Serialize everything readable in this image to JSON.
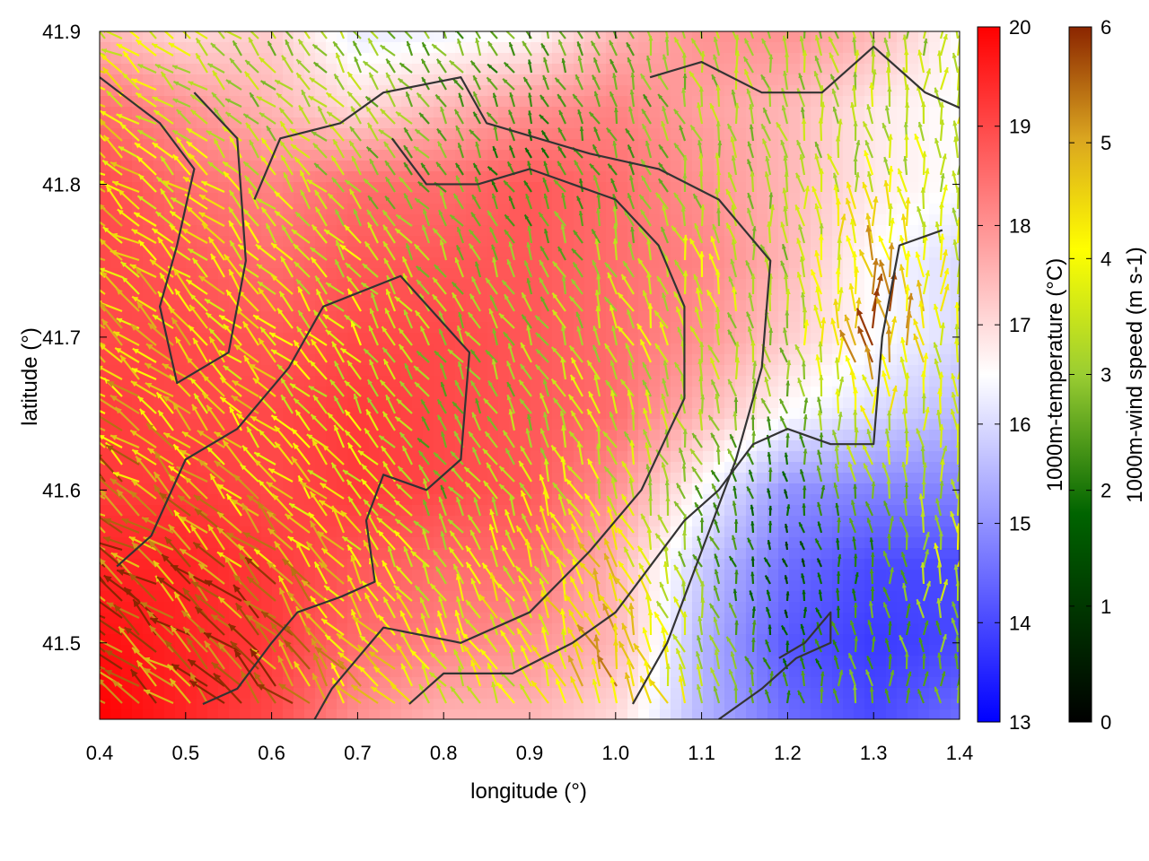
{
  "chart_data": {
    "type": "heatmap",
    "title": "",
    "xlabel": "longitude (°)",
    "ylabel": "latitude (°)",
    "xlim": [
      0.4,
      1.4
    ],
    "ylim": [
      41.45,
      41.9
    ],
    "x_ticks": [
      "0.4",
      "0.5",
      "0.6",
      "0.7",
      "0.8",
      "0.9",
      "1.0",
      "1.1",
      "1.2",
      "1.3",
      "1.4"
    ],
    "y_ticks": [
      "41.5",
      "41.6",
      "41.7",
      "41.8",
      "41.9"
    ],
    "grid": false,
    "temperature_field": {
      "colorbar_label": "1000m-temperature (°C)",
      "range": [
        13,
        20
      ],
      "ticks": [
        "13",
        "14",
        "15",
        "16",
        "17",
        "18",
        "19",
        "20"
      ],
      "palette": [
        "#0000ff",
        "#ffffff",
        "#ff0000"
      ],
      "x": [
        0.4,
        0.5,
        0.6,
        0.7,
        0.8,
        0.9,
        1.0,
        1.1,
        1.2,
        1.3,
        1.4
      ],
      "y": [
        41.9,
        41.85,
        41.8,
        41.75,
        41.7,
        41.65,
        41.6,
        41.55,
        41.5,
        41.45
      ],
      "values": [
        [
          17.5,
          17.0,
          17.2,
          16.2,
          16.3,
          16.5,
          17.5,
          18.0,
          18.0,
          17.5,
          16.5
        ],
        [
          18.5,
          18.0,
          17.5,
          17.0,
          17.5,
          18.0,
          18.2,
          17.8,
          17.5,
          16.8,
          16.5
        ],
        [
          19.0,
          18.5,
          18.2,
          18.5,
          18.5,
          18.8,
          18.5,
          18.0,
          17.5,
          16.8,
          16.5
        ],
        [
          19.0,
          18.8,
          18.5,
          18.8,
          18.8,
          18.8,
          18.5,
          18.2,
          17.5,
          16.5,
          16.0
        ],
        [
          19.0,
          19.0,
          18.8,
          19.0,
          19.0,
          18.8,
          18.5,
          18.0,
          17.2,
          16.5,
          16.0
        ],
        [
          19.2,
          19.0,
          19.0,
          19.2,
          19.0,
          18.8,
          18.5,
          17.5,
          16.5,
          16.0,
          15.5
        ],
        [
          19.2,
          19.2,
          19.0,
          19.2,
          19.0,
          18.8,
          18.0,
          16.5,
          15.0,
          14.8,
          14.8
        ],
        [
          19.5,
          19.5,
          19.2,
          18.8,
          18.5,
          18.5,
          17.5,
          15.8,
          14.5,
          14.0,
          14.0
        ],
        [
          19.8,
          19.5,
          19.2,
          18.5,
          18.2,
          18.0,
          17.5,
          15.5,
          14.2,
          13.8,
          14.0
        ],
        [
          20.0,
          19.5,
          19.0,
          18.0,
          17.5,
          17.5,
          17.0,
          15.5,
          14.5,
          14.0,
          14.5
        ]
      ]
    },
    "wind_field": {
      "colorbar_label": "1000m-wind speed (m s-1)",
      "range": [
        0,
        6
      ],
      "ticks": [
        "0",
        "1",
        "2",
        "3",
        "4",
        "5",
        "6"
      ],
      "palette": [
        "#000000",
        "#006400",
        "#9acd32",
        "#ffff00",
        "#daa520",
        "#8b2500"
      ],
      "x": [
        0.4,
        0.5,
        0.6,
        0.7,
        0.8,
        0.9,
        1.0,
        1.1,
        1.2,
        1.3,
        1.4
      ],
      "y": [
        41.9,
        41.85,
        41.8,
        41.75,
        41.7,
        41.65,
        41.6,
        41.55,
        41.5,
        41.45
      ],
      "speed": [
        [
          3.5,
          3.0,
          2.5,
          2.5,
          2.0,
          2.0,
          2.0,
          2.5,
          2.5,
          2.5,
          2.5
        ],
        [
          3.8,
          3.0,
          2.5,
          2.5,
          2.0,
          1.5,
          1.8,
          2.5,
          2.5,
          2.8,
          3.0
        ],
        [
          4.0,
          3.5,
          3.0,
          2.5,
          2.0,
          1.5,
          2.0,
          2.5,
          2.5,
          3.0,
          3.0
        ],
        [
          4.0,
          3.8,
          3.5,
          3.0,
          2.5,
          2.0,
          2.5,
          3.0,
          2.5,
          4.5,
          3.0
        ],
        [
          4.2,
          4.0,
          3.5,
          3.0,
          2.5,
          2.5,
          3.0,
          3.0,
          2.5,
          5.5,
          3.0
        ],
        [
          4.5,
          4.0,
          3.8,
          3.0,
          2.0,
          2.5,
          3.0,
          2.5,
          2.0,
          3.5,
          3.0
        ],
        [
          5.0,
          4.5,
          4.0,
          3.5,
          2.0,
          3.0,
          3.0,
          2.0,
          1.2,
          2.5,
          2.5
        ],
        [
          5.5,
          5.0,
          4.8,
          3.8,
          3.0,
          3.5,
          4.0,
          2.0,
          0.8,
          1.5,
          3.5
        ],
        [
          5.5,
          5.5,
          5.5,
          4.0,
          3.5,
          3.5,
          4.5,
          2.5,
          1.0,
          2.0,
          2.0
        ],
        [
          5.5,
          5.5,
          5.8,
          4.5,
          3.0,
          3.0,
          4.5,
          3.0,
          2.0,
          2.0,
          2.0
        ]
      ],
      "direction": "mostly towards north-west in the west, towards north in the east"
    },
    "contour_color": "#333333",
    "contours": [
      [
        [
          0.4,
          41.87
        ],
        [
          0.47,
          41.84
        ],
        [
          0.51,
          41.81
        ],
        [
          0.49,
          41.76
        ],
        [
          0.47,
          41.72
        ],
        [
          0.49,
          41.67
        ],
        [
          0.55,
          41.69
        ],
        [
          0.57,
          41.75
        ],
        [
          0.56,
          41.83
        ],
        [
          0.51,
          41.86
        ]
      ],
      [
        [
          0.58,
          41.79
        ],
        [
          0.61,
          41.83
        ],
        [
          0.68,
          41.84
        ],
        [
          0.73,
          41.86
        ],
        [
          0.82,
          41.87
        ],
        [
          0.85,
          41.84
        ],
        [
          0.91,
          41.83
        ],
        [
          0.97,
          41.82
        ],
        [
          1.05,
          41.81
        ],
        [
          1.12,
          41.79
        ],
        [
          1.18,
          41.75
        ],
        [
          1.17,
          41.68
        ],
        [
          1.14,
          41.62
        ],
        [
          1.1,
          41.56
        ],
        [
          1.06,
          41.5
        ],
        [
          1.02,
          41.46
        ]
      ],
      [
        [
          0.42,
          41.55
        ],
        [
          0.46,
          41.57
        ],
        [
          0.5,
          41.62
        ],
        [
          0.56,
          41.64
        ],
        [
          0.62,
          41.68
        ],
        [
          0.66,
          41.72
        ],
        [
          0.75,
          41.74
        ],
        [
          0.83,
          41.69
        ],
        [
          0.82,
          41.62
        ],
        [
          0.78,
          41.6
        ],
        [
          0.73,
          41.61
        ],
        [
          0.71,
          41.58
        ],
        [
          0.72,
          41.54
        ],
        [
          0.68,
          41.53
        ],
        [
          0.63,
          41.52
        ],
        [
          0.6,
          41.5
        ],
        [
          0.56,
          41.47
        ],
        [
          0.52,
          41.46
        ]
      ],
      [
        [
          0.74,
          41.83
        ],
        [
          0.78,
          41.8
        ],
        [
          0.84,
          41.8
        ],
        [
          0.9,
          41.81
        ],
        [
          0.95,
          41.8
        ],
        [
          1.0,
          41.79
        ],
        [
          1.05,
          41.76
        ],
        [
          1.08,
          41.72
        ],
        [
          1.08,
          41.66
        ],
        [
          1.03,
          41.6
        ],
        [
          0.97,
          41.56
        ],
        [
          0.9,
          41.52
        ],
        [
          0.82,
          41.5
        ],
        [
          0.73,
          41.51
        ],
        [
          0.7,
          41.49
        ],
        [
          0.67,
          41.47
        ],
        [
          0.65,
          41.45
        ]
      ],
      [
        [
          0.76,
          41.46
        ],
        [
          0.8,
          41.48
        ],
        [
          0.88,
          41.48
        ],
        [
          0.95,
          41.5
        ],
        [
          1.0,
          41.52
        ],
        [
          1.04,
          41.55
        ],
        [
          1.08,
          41.58
        ],
        [
          1.12,
          41.6
        ],
        [
          1.16,
          41.63
        ],
        [
          1.2,
          41.64
        ],
        [
          1.25,
          41.63
        ],
        [
          1.3,
          41.63
        ],
        [
          1.31,
          41.7
        ],
        [
          1.33,
          41.76
        ],
        [
          1.38,
          41.77
        ]
      ],
      [
        [
          1.12,
          41.45
        ],
        [
          1.17,
          41.47
        ],
        [
          1.21,
          41.49
        ],
        [
          1.25,
          41.5
        ],
        [
          1.25,
          41.52
        ],
        [
          1.22,
          41.5
        ],
        [
          1.19,
          41.49
        ]
      ],
      [
        [
          1.04,
          41.87
        ],
        [
          1.1,
          41.88
        ],
        [
          1.17,
          41.86
        ],
        [
          1.24,
          41.86
        ],
        [
          1.3,
          41.89
        ],
        [
          1.36,
          41.86
        ],
        [
          1.4,
          41.85
        ]
      ]
    ]
  }
}
